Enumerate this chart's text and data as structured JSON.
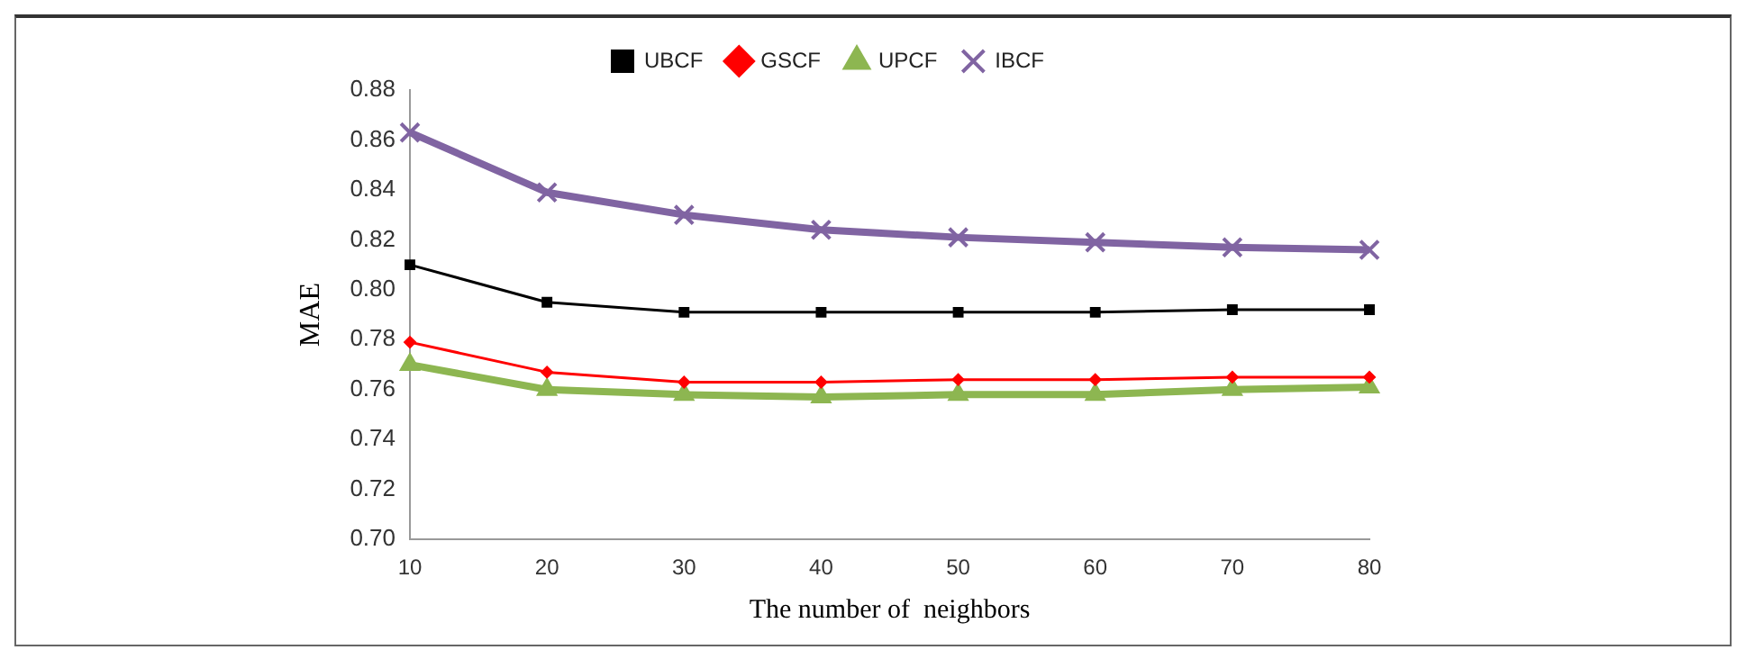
{
  "chart_data": {
    "type": "line",
    "xlabel": "The number of  neighbors",
    "ylabel": "MAE",
    "categories": [
      "10",
      "20",
      "30",
      "40",
      "50",
      "60",
      "70",
      "80"
    ],
    "series": [
      {
        "name": "UBCF",
        "color": "#000000",
        "marker": "square",
        "values": [
          0.81,
          0.795,
          0.791,
          0.791,
          0.791,
          0.791,
          0.792,
          0.792
        ]
      },
      {
        "name": "GSCF",
        "color": "#ff0000",
        "marker": "diamond",
        "values": [
          0.779,
          0.767,
          0.763,
          0.763,
          0.764,
          0.764,
          0.765,
          0.765
        ]
      },
      {
        "name": "UPCF",
        "color": "#8db651",
        "marker": "triangle",
        "values": [
          0.77,
          0.76,
          0.758,
          0.757,
          0.758,
          0.758,
          0.76,
          0.761
        ]
      },
      {
        "name": "IBCF",
        "color": "#8064a2",
        "marker": "cross",
        "values": [
          0.863,
          0.839,
          0.83,
          0.824,
          0.821,
          0.819,
          0.817,
          0.816
        ]
      }
    ],
    "ylim": [
      0.7,
      0.88
    ],
    "yticks": [
      {
        "value": 0.7,
        "label": "0.70"
      },
      {
        "value": 0.72,
        "label": "0.72"
      },
      {
        "value": 0.74,
        "label": "0.74"
      },
      {
        "value": 0.76,
        "label": "0.76"
      },
      {
        "value": 0.78,
        "label": "0.78"
      },
      {
        "value": 0.8,
        "label": "0.80"
      },
      {
        "value": 0.82,
        "label": "0.82"
      },
      {
        "value": 0.84,
        "label": "0.84"
      },
      {
        "value": 0.86,
        "label": "0.86"
      },
      {
        "value": 0.88,
        "label": "0.88"
      }
    ],
    "grid": false,
    "legend": "top"
  }
}
